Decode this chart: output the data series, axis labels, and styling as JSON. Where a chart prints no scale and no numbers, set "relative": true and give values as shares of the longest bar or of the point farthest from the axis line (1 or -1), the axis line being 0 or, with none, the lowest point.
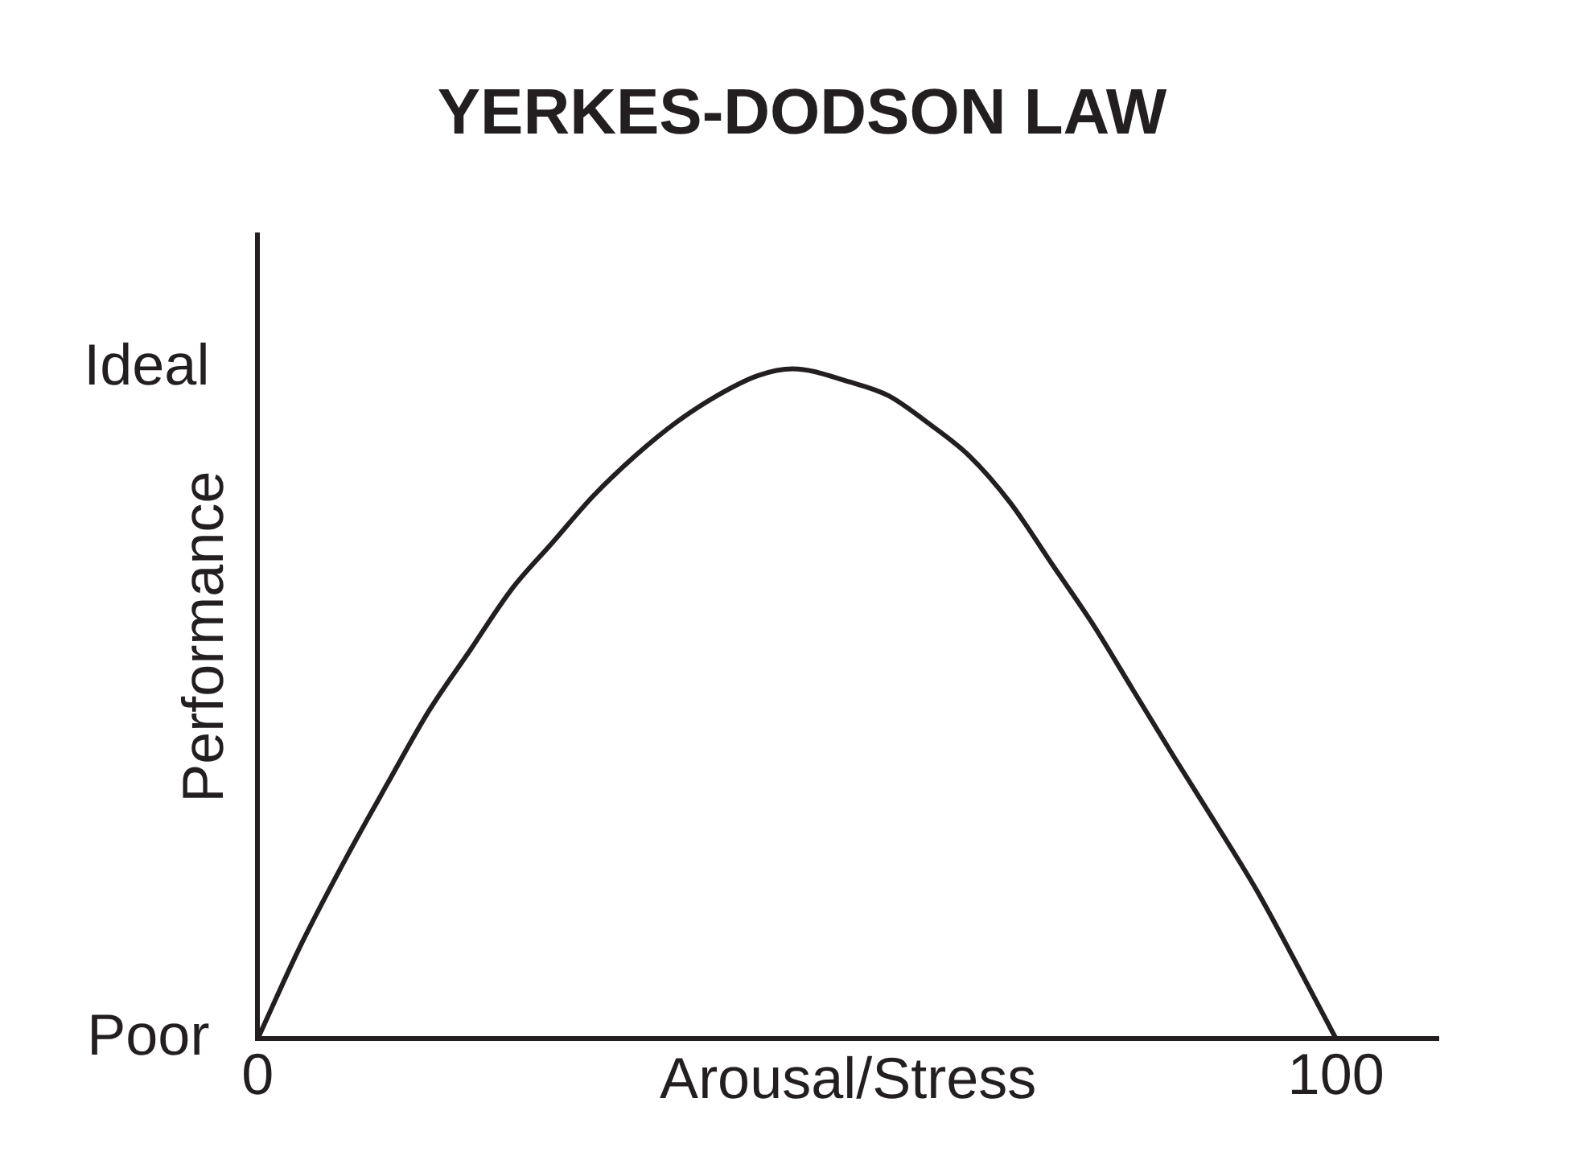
{
  "chart_data": {
    "type": "line",
    "title": "YERKES-DODSON LAW",
    "xlabel": "Arousal/Stress",
    "ylabel": "Performance",
    "relative": true,
    "x": [
      0,
      4,
      8.2,
      12,
      15.9,
      19.7,
      23.5,
      27.3,
      31.1,
      35,
      38.8,
      42.6,
      46.4,
      49.6,
      55,
      58.5,
      62.1,
      66,
      69.8,
      73.6,
      77.4,
      81.2,
      85,
      88.9,
      92.7,
      96.4,
      100
    ],
    "series": [
      {
        "color": "#231f20",
        "values": [
          0,
          0.14,
          0.27,
          0.38,
          0.49,
          0.58,
          0.67,
          0.74,
          0.81,
          0.87,
          0.92,
          0.96,
          0.99,
          1.0,
          0.98,
          0.96,
          0.92,
          0.87,
          0.8,
          0.71,
          0.62,
          0.52,
          0.42,
          0.32,
          0.22,
          0.11,
          0
        ]
      }
    ],
    "xlim": [
      0,
      109.5
    ],
    "xticks": [
      0,
      100
    ],
    "annotations": [
      "Poor",
      "Ideal"
    ],
    "grid": false,
    "legend": false,
    "marker": "none",
    "line_style": "solid"
  }
}
